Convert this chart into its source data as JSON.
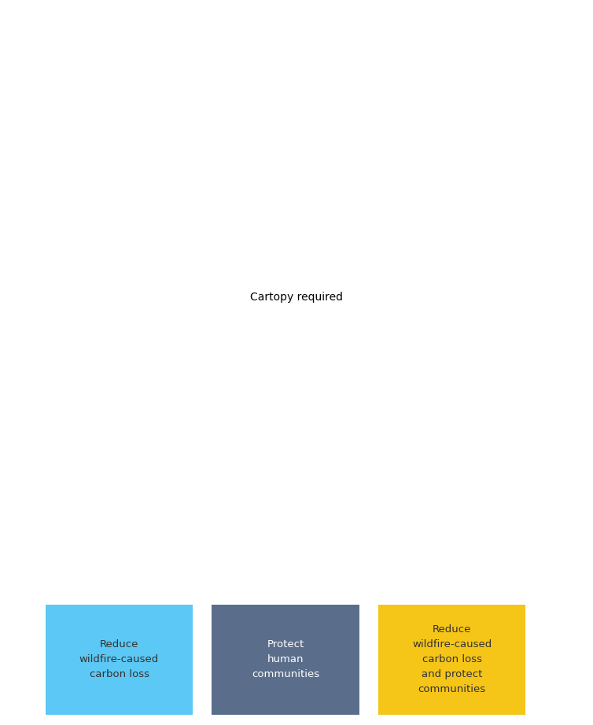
{
  "legend_items": [
    {
      "label": "Reduce\nwildfire-caused\ncarbon loss",
      "color": "#5BC8F5",
      "text_color": "#333333"
    },
    {
      "label": "Protect\nhuman\ncommunities",
      "color": "#5A6E8C",
      "text_color": "#ffffff"
    },
    {
      "label": "Reduce\nwildfire-caused\ncarbon loss\nand protect\ncommunities",
      "color": "#F5C518",
      "text_color": "#333333"
    }
  ],
  "bg_color": "#ffffff",
  "map_bg": "#ffffff",
  "state_edge_color": "#666666",
  "gray_dot_color": "#c8c8c8",
  "hex_blue": "#5BC8F5",
  "hex_gray": "#5A6E8C",
  "hex_yellow": "#F5C518",
  "hex_edge": "#555555",
  "figsize": [
    7.54,
    9.22
  ],
  "dpi": 100,
  "lon_min": -125.5,
  "lon_max": -101.5,
  "lat_min": 30.5,
  "lat_max": 50.5
}
